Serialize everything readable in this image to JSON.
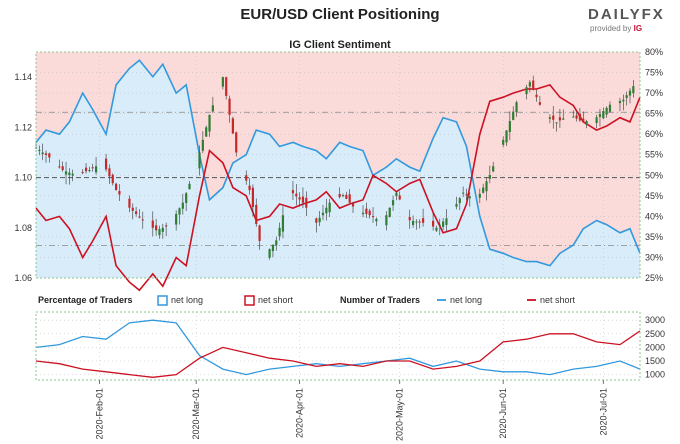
{
  "header": {
    "title": "EUR/USD Client Positioning",
    "brand": "DAILYFX",
    "brand_sub": "provided by",
    "brand_ig": "IG"
  },
  "chart_data": [
    {
      "type": "area",
      "title": "IG Client Sentiment",
      "left_axis": {
        "range": [
          1.06,
          1.15
        ],
        "ticks": [
          "1.06",
          "1.08",
          "1.10",
          "1.12",
          "1.14"
        ]
      },
      "right_axis": {
        "range": [
          25,
          80
        ],
        "ticks": [
          "25%",
          "30%",
          "35%",
          "40%",
          "45%",
          "50%",
          "55%",
          "60%",
          "65%",
          "70%",
          "75%",
          "80%"
        ]
      },
      "x_range": [
        "2020-01-13",
        "2020-07-12"
      ],
      "reference_lines": [
        1.1,
        1.126,
        1.073
      ],
      "net_long_pct": {
        "x": [
          "2020-01-13",
          "2020-01-16",
          "2020-01-20",
          "2020-01-23",
          "2020-01-27",
          "2020-01-30",
          "2020-02-03",
          "2020-02-06",
          "2020-02-10",
          "2020-02-13",
          "2020-02-17",
          "2020-02-20",
          "2020-02-24",
          "2020-02-27",
          "2020-03-02",
          "2020-03-05",
          "2020-03-09",
          "2020-03-12",
          "2020-03-16",
          "2020-03-19",
          "2020-03-23",
          "2020-03-26",
          "2020-03-30",
          "2020-04-02",
          "2020-04-06",
          "2020-04-09",
          "2020-04-13",
          "2020-04-16",
          "2020-04-20",
          "2020-04-23",
          "2020-04-27",
          "2020-04-30",
          "2020-05-04",
          "2020-05-07",
          "2020-05-11",
          "2020-05-14",
          "2020-05-18",
          "2020-05-21",
          "2020-05-25",
          "2020-05-28",
          "2020-06-01",
          "2020-06-04",
          "2020-06-08",
          "2020-06-11",
          "2020-06-15",
          "2020-06-18",
          "2020-06-22",
          "2020-06-25",
          "2020-06-29",
          "2020-07-02",
          "2020-07-06",
          "2020-07-09",
          "2020-07-12"
        ],
        "values": [
          58,
          61,
          60,
          63,
          70,
          66,
          60,
          72,
          76,
          78,
          74,
          77,
          70,
          72,
          55,
          44,
          47,
          53,
          55,
          61,
          60,
          57,
          58,
          57,
          56,
          54,
          58,
          57,
          56,
          50,
          52,
          54,
          52,
          51,
          59,
          64,
          63,
          57,
          40,
          32,
          31,
          30,
          29,
          29,
          28,
          31,
          33,
          37,
          39,
          38,
          36,
          37,
          31
        ]
      },
      "net_short_pct": {
        "x": [
          "2020-01-13",
          "2020-01-16",
          "2020-01-20",
          "2020-01-23",
          "2020-01-27",
          "2020-01-30",
          "2020-02-03",
          "2020-02-06",
          "2020-02-10",
          "2020-02-13",
          "2020-02-17",
          "2020-02-20",
          "2020-02-24",
          "2020-02-27",
          "2020-03-02",
          "2020-03-05",
          "2020-03-09",
          "2020-03-12",
          "2020-03-16",
          "2020-03-19",
          "2020-03-23",
          "2020-03-26",
          "2020-03-30",
          "2020-04-02",
          "2020-04-06",
          "2020-04-09",
          "2020-04-13",
          "2020-04-16",
          "2020-04-20",
          "2020-04-23",
          "2020-04-27",
          "2020-04-30",
          "2020-05-04",
          "2020-05-07",
          "2020-05-11",
          "2020-05-14",
          "2020-05-18",
          "2020-05-21",
          "2020-05-25",
          "2020-05-28",
          "2020-06-01",
          "2020-06-04",
          "2020-06-08",
          "2020-06-11",
          "2020-06-15",
          "2020-06-18",
          "2020-06-22",
          "2020-06-25",
          "2020-06-29",
          "2020-07-02",
          "2020-07-06",
          "2020-07-09",
          "2020-07-12"
        ],
        "values": [
          42,
          39,
          40,
          37,
          30,
          34,
          40,
          28,
          24,
          22,
          26,
          23,
          30,
          28,
          45,
          56,
          53,
          47,
          45,
          39,
          40,
          43,
          42,
          43,
          44,
          46,
          42,
          43,
          44,
          50,
          48,
          46,
          48,
          49,
          41,
          36,
          37,
          43,
          60,
          68,
          69,
          70,
          71,
          71,
          72,
          69,
          67,
          63,
          61,
          62,
          64,
          63,
          69
        ]
      },
      "price_path": {
        "x": [
          "2020-01-13",
          "2020-01-17",
          "2020-01-21",
          "2020-01-25",
          "2020-01-29",
          "2020-02-02",
          "2020-02-06",
          "2020-02-10",
          "2020-02-14",
          "2020-02-18",
          "2020-02-22",
          "2020-02-26",
          "2020-03-01",
          "2020-03-05",
          "2020-03-09",
          "2020-03-13",
          "2020-03-17",
          "2020-03-21",
          "2020-03-25",
          "2020-03-29",
          "2020-04-02",
          "2020-04-06",
          "2020-04-10",
          "2020-04-14",
          "2020-04-18",
          "2020-04-22",
          "2020-04-26",
          "2020-04-30",
          "2020-05-04",
          "2020-05-08",
          "2020-05-12",
          "2020-05-16",
          "2020-05-20",
          "2020-05-24",
          "2020-05-28",
          "2020-06-01",
          "2020-06-05",
          "2020-06-09",
          "2020-06-13",
          "2020-06-17",
          "2020-06-21",
          "2020-06-25",
          "2020-06-29",
          "2020-07-03",
          "2020-07-07",
          "2020-07-12"
        ],
        "values": [
          1.112,
          1.108,
          1.103,
          1.101,
          1.103,
          1.106,
          1.095,
          1.088,
          1.083,
          1.079,
          1.081,
          1.09,
          1.105,
          1.125,
          1.14,
          1.11,
          1.095,
          1.068,
          1.075,
          1.095,
          1.09,
          1.082,
          1.09,
          1.093,
          1.087,
          1.085,
          1.082,
          1.094,
          1.083,
          1.082,
          1.08,
          1.085,
          1.094,
          1.091,
          1.101,
          1.115,
          1.13,
          1.138,
          1.126,
          1.122,
          1.125,
          1.122,
          1.124,
          1.129,
          1.131,
          1.14
        ]
      },
      "series_colors": {
        "net_long": "#3399dd",
        "net_short": "#cc1122",
        "candle_up": "#2e7d32",
        "candle_down": "#c62828"
      }
    },
    {
      "type": "line",
      "y_ticks": [
        "1000",
        "1500",
        "2000",
        "2500",
        "3000"
      ],
      "y_range": [
        800,
        3300
      ],
      "x_ticks": [
        "2020-Feb-01",
        "2020-Mar-01",
        "2020-Apr-01",
        "2020-May-01",
        "2020-Jun-01",
        "2020-Jul-01"
      ],
      "x_tick_dates": [
        "2020-02-01",
        "2020-03-01",
        "2020-04-01",
        "2020-05-01",
        "2020-06-01",
        "2020-07-01"
      ],
      "legend": {
        "pct_label": "Percentage of Traders",
        "pct_long": "net long",
        "pct_short": "net short",
        "num_label": "Number of Traders",
        "num_long": "net long",
        "num_short": "net short"
      },
      "net_long_count": {
        "x": [
          "2020-01-13",
          "2020-01-20",
          "2020-01-27",
          "2020-02-03",
          "2020-02-10",
          "2020-02-17",
          "2020-02-24",
          "2020-03-02",
          "2020-03-09",
          "2020-03-16",
          "2020-03-23",
          "2020-03-30",
          "2020-04-06",
          "2020-04-13",
          "2020-04-20",
          "2020-04-27",
          "2020-05-04",
          "2020-05-11",
          "2020-05-18",
          "2020-05-25",
          "2020-06-01",
          "2020-06-08",
          "2020-06-15",
          "2020-06-22",
          "2020-06-29",
          "2020-07-06",
          "2020-07-12"
        ],
        "values": [
          2000,
          2100,
          2400,
          2300,
          2900,
          3000,
          2900,
          1700,
          1200,
          1000,
          1200,
          1300,
          1400,
          1300,
          1400,
          1500,
          1600,
          1300,
          1500,
          1200,
          1100,
          1100,
          1000,
          1200,
          1300,
          1500,
          1200
        ]
      },
      "net_short_count": {
        "x": [
          "2020-01-13",
          "2020-01-20",
          "2020-01-27",
          "2020-02-03",
          "2020-02-10",
          "2020-02-17",
          "2020-02-24",
          "2020-03-02",
          "2020-03-09",
          "2020-03-16",
          "2020-03-23",
          "2020-03-30",
          "2020-04-06",
          "2020-04-13",
          "2020-04-20",
          "2020-04-27",
          "2020-05-04",
          "2020-05-11",
          "2020-05-18",
          "2020-05-25",
          "2020-06-01",
          "2020-06-08",
          "2020-06-15",
          "2020-06-22",
          "2020-06-29",
          "2020-07-06",
          "2020-07-12"
        ],
        "values": [
          1500,
          1400,
          1200,
          1100,
          1000,
          900,
          1000,
          1600,
          2000,
          1800,
          1600,
          1500,
          1300,
          1400,
          1300,
          1500,
          1500,
          1200,
          1300,
          1500,
          2200,
          2300,
          2500,
          2500,
          2200,
          2100,
          2600
        ]
      }
    }
  ]
}
